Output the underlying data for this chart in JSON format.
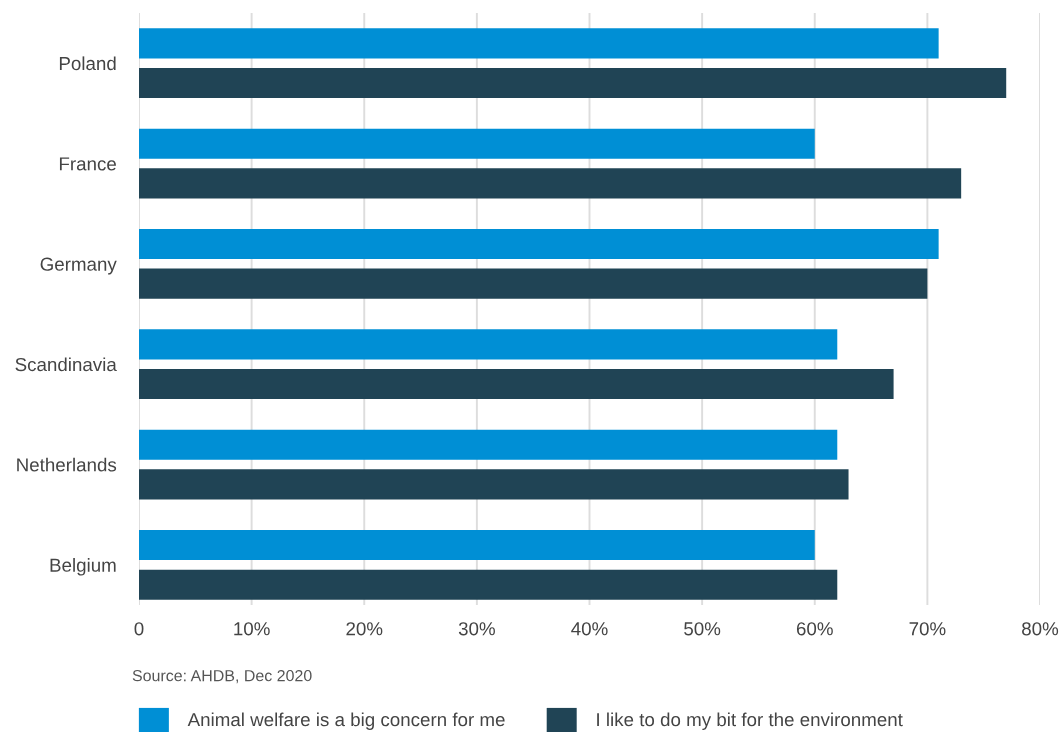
{
  "chart_data": {
    "type": "bar",
    "orientation": "horizontal",
    "categories": [
      "Poland",
      "France",
      "Germany",
      "Scandinavia",
      "Netherlands",
      "Belgium"
    ],
    "series": [
      {
        "name": "Animal welfare is a big concern for me",
        "color": "#008fd5",
        "values": [
          71,
          60,
          71,
          62,
          62,
          60
        ]
      },
      {
        "name": "I like to do my bit for the environment",
        "color": "#204455",
        "values": [
          77,
          73,
          70,
          67,
          63,
          62
        ]
      }
    ],
    "xlim": [
      0,
      80
    ],
    "xticks": [
      0,
      {
        "value": 10,
        "label": "10%"
      },
      {
        "value": 20,
        "label": "20%"
      },
      {
        "value": 30,
        "label": "30%"
      },
      {
        "value": 40,
        "label": "40%"
      },
      {
        "value": 50,
        "label": "50%"
      },
      {
        "value": 60,
        "label": "60%"
      },
      {
        "value": 70,
        "label": "70%"
      },
      {
        "value": 80,
        "label": "80%"
      }
    ],
    "grid": "x",
    "legend": "bottom",
    "annotations": [
      "Source: AHDB, Dec 2020"
    ]
  }
}
